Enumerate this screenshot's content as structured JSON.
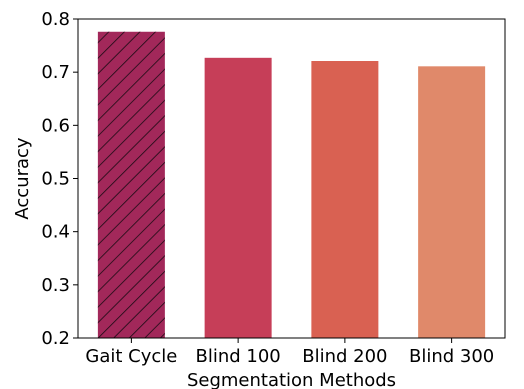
{
  "chart_data": {
    "type": "bar",
    "title": "",
    "xlabel": "Segmentation Methods",
    "ylabel": "Accuracy",
    "categories": [
      "Gait Cycle",
      "Blind 100",
      "Blind 200",
      "Blind 300"
    ],
    "values": [
      0.776,
      0.727,
      0.721,
      0.711
    ],
    "colors": [
      "#a2285a",
      "#c63e58",
      "#d96152",
      "#e0896a"
    ],
    "hatch": [
      true,
      false,
      false,
      false
    ],
    "ylim": [
      0.2,
      0.8
    ],
    "yticks": [
      "0.2",
      "0.3",
      "0.4",
      "0.5",
      "0.6",
      "0.7",
      "0.8"
    ],
    "grid": false,
    "legend": null
  }
}
